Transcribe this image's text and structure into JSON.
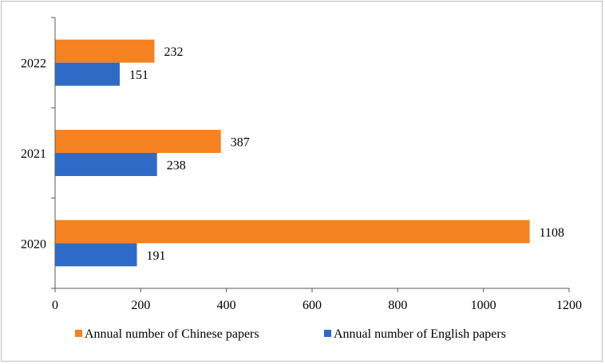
{
  "chart_data": {
    "type": "bar",
    "orientation": "horizontal",
    "categories": [
      "2020",
      "2021",
      "2022"
    ],
    "series": [
      {
        "name": "Annual number of Chinese papers",
        "color": "#f58220",
        "values": [
          1108,
          387,
          232
        ]
      },
      {
        "name": "Annual number of English papers",
        "color": "#2e6bc6",
        "values": [
          191,
          238,
          151
        ]
      }
    ],
    "xlim": [
      0,
      1200
    ],
    "xticks": [
      0,
      200,
      400,
      600,
      800,
      1000,
      1200
    ],
    "grid": false,
    "legend_position": "bottom",
    "data_labels": true
  }
}
